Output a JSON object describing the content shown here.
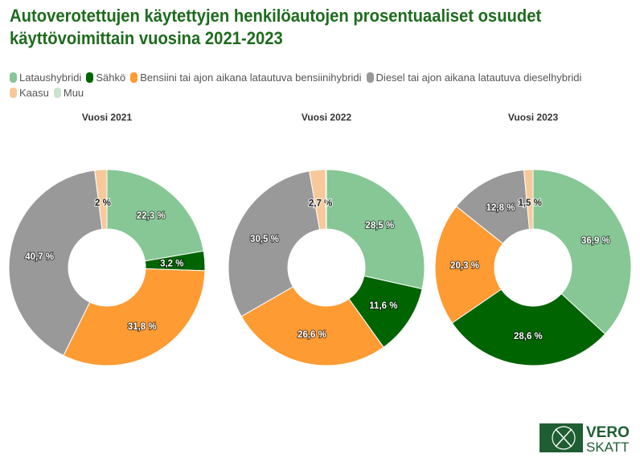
{
  "title": "Autoverotettujen käytettyjen henkilöautojen prosentuaaliset osuudet käyttövoimittain vuosina 2021-2023",
  "logo": {
    "line1": "VERO",
    "line2": "SKATT",
    "color": "#1e5e32"
  },
  "chart_data": {
    "type": "pie",
    "variant": "donut",
    "legend_position": "top",
    "categories": [
      "Lataushybridi",
      "Sähkö",
      "Bensiini tai ajon aikana latautuva bensiinihybridi",
      "Diesel tai ajon aikana latautuva dieselhybridi",
      "Kaasu",
      "Muu"
    ],
    "colors": [
      "#86c795",
      "#006400",
      "#ff9b33",
      "#999999",
      "#f7c99a",
      "#cde3cf"
    ],
    "charts": [
      {
        "title": "Vuosi 2021",
        "values": [
          22.3,
          3.2,
          31.8,
          40.7,
          2,
          0
        ],
        "labels": [
          "22,3 %",
          "3,2 %",
          "31,8 %",
          "40,7 %",
          "2 %",
          ""
        ]
      },
      {
        "title": "Vuosi 2022",
        "values": [
          28.5,
          11.6,
          26.6,
          30.5,
          2.7,
          0.1
        ],
        "labels": [
          "28,5 %",
          "11,6 %",
          "26,6 %",
          "30,5 %",
          "2,7 %",
          ""
        ]
      },
      {
        "title": "Vuosi 2023",
        "values": [
          36.9,
          28.6,
          20.3,
          12.8,
          1.5,
          0
        ],
        "labels": [
          "36,9 %",
          "28,6 %",
          "20,3 %",
          "12,8 %",
          "1,5 %",
          ""
        ]
      }
    ]
  }
}
